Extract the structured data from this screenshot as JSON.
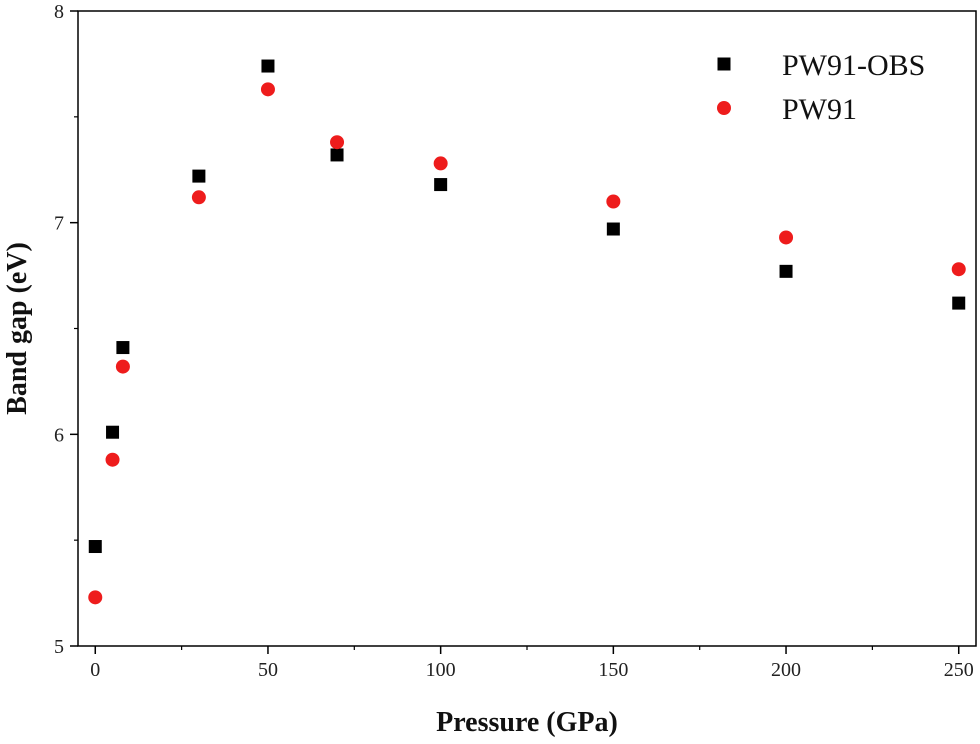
{
  "chart_data": {
    "type": "scatter",
    "xlabel": "Pressure (GPa)",
    "ylabel": "Band gap (eV)",
    "xlim": [
      -5,
      255
    ],
    "ylim": [
      5,
      8
    ],
    "xticks": [
      0,
      50,
      100,
      150,
      200,
      250
    ],
    "yticks": [
      5,
      6,
      7,
      8
    ],
    "grid": false,
    "legend_position": "top-right",
    "series": [
      {
        "name": "PW91-OBS",
        "marker": "square",
        "color": "#000000",
        "x": [
          0,
          5,
          8,
          30,
          50,
          70,
          100,
          150,
          200,
          250
        ],
        "y": [
          5.47,
          6.01,
          6.41,
          7.22,
          7.74,
          7.32,
          7.18,
          6.97,
          6.77,
          6.62
        ]
      },
      {
        "name": "PW91",
        "marker": "circle",
        "color": "#ee1c1c",
        "x": [
          0,
          5,
          8,
          30,
          50,
          70,
          100,
          150,
          200,
          250
        ],
        "y": [
          5.23,
          5.88,
          6.32,
          7.12,
          7.63,
          7.38,
          7.28,
          7.1,
          6.93,
          6.78
        ]
      }
    ]
  }
}
